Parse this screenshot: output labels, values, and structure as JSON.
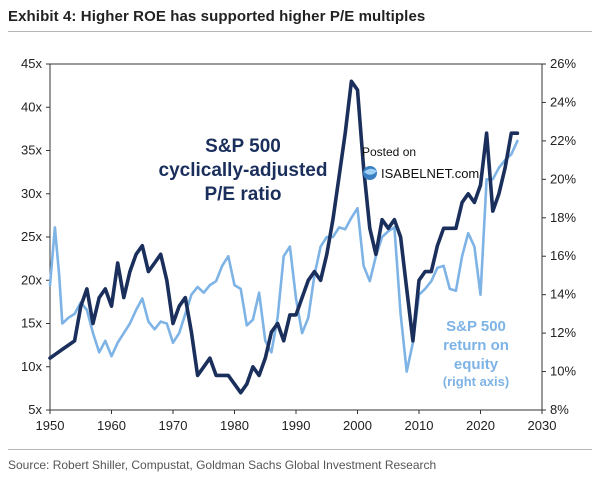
{
  "title": "Exhibit 4: Higher ROE has supported higher P/E multiples",
  "source": "Source: Robert Shiller, Compustat, Goldman Sachs Global Investment Research",
  "watermark": {
    "line1": "Posted on",
    "line2": "ISABELNET.com"
  },
  "colors": {
    "pe": "#1b2f5c",
    "roe": "#7eb3e6"
  },
  "chart_data": {
    "type": "line",
    "x_axis": {
      "range": [
        1950,
        2030
      ],
      "ticks": [
        "1950",
        "1960",
        "1970",
        "1980",
        "1990",
        "2000",
        "2010",
        "2020",
        "2030"
      ]
    },
    "y_left": {
      "range": [
        5,
        45
      ],
      "ticks": [
        "5x",
        "10x",
        "15x",
        "20x",
        "25x",
        "30x",
        "35x",
        "40x",
        "45x"
      ]
    },
    "y_right": {
      "range": [
        8,
        26
      ],
      "ticks": [
        "8%",
        "10%",
        "12%",
        "14%",
        "16%",
        "18%",
        "20%",
        "22%",
        "24%",
        "26%"
      ]
    },
    "annotations": {
      "pe": [
        "S&P 500",
        "cyclically-adjusted",
        "P/E ratio"
      ],
      "roe": [
        "S&P 500",
        "return on",
        "equity",
        "(right axis)"
      ]
    },
    "series": [
      {
        "name": "S&P 500 cyclically-adjusted P/E ratio",
        "axis": "left",
        "x": [
          1950,
          1951,
          1952,
          1953,
          1954,
          1955,
          1956,
          1957,
          1958,
          1959,
          1960,
          1961,
          1962,
          1963,
          1964,
          1965,
          1966,
          1967,
          1968,
          1969,
          1970,
          1971,
          1972,
          1973,
          1974,
          1975,
          1976,
          1977,
          1978,
          1979,
          1980,
          1981,
          1982,
          1983,
          1984,
          1985,
          1986,
          1987,
          1988,
          1989,
          1990,
          1991,
          1992,
          1993,
          1994,
          1995,
          1996,
          1997,
          1998,
          1999,
          2000,
          2001,
          2002,
          2003,
          2004,
          2005,
          2006,
          2007,
          2008,
          2009,
          2010,
          2011,
          2012,
          2013,
          2014,
          2015,
          2016,
          2017,
          2018,
          2019,
          2020,
          2021,
          2022,
          2023,
          2024,
          2025,
          2026
        ],
        "y": [
          11,
          11.5,
          12,
          12.5,
          13,
          17,
          19,
          15,
          18,
          19,
          17,
          22,
          18,
          21,
          23,
          24,
          21,
          22,
          23,
          20,
          15,
          17,
          18,
          14,
          9,
          10,
          11,
          9,
          9,
          9,
          8,
          7,
          8,
          10,
          9,
          11,
          14,
          15,
          13,
          16,
          16,
          18,
          20,
          21,
          20,
          23,
          27,
          32,
          37,
          43,
          42,
          33,
          26,
          23,
          27,
          26,
          27,
          25,
          19,
          13,
          20,
          21,
          21,
          24,
          26,
          26,
          26,
          29,
          30,
          29,
          31,
          37,
          28,
          30,
          33,
          37,
          37
        ]
      },
      {
        "name": "S&P 500 return on equity",
        "axis": "right",
        "x": [
          1950,
          1950.8,
          1951.5,
          1952,
          1953,
          1954,
          1955,
          1956,
          1957,
          1958,
          1959,
          1960,
          1961,
          1962,
          1963,
          1964,
          1965,
          1966,
          1967,
          1968,
          1969,
          1970,
          1971,
          1972,
          1973,
          1974,
          1975,
          1976,
          1977,
          1978,
          1979,
          1980,
          1981,
          1982,
          1983,
          1984,
          1985,
          1986,
          1987,
          1988,
          1989,
          1990,
          1991,
          1992,
          1993,
          1994,
          1995,
          1996,
          1997,
          1998,
          1999,
          2000,
          2001,
          2002,
          2003,
          2004,
          2005,
          2006,
          2007,
          2008,
          2009,
          2010,
          2011,
          2012,
          2013,
          2014,
          2015,
          2016,
          2017,
          2018,
          2019,
          2020,
          2021,
          2022,
          2023,
          2024,
          2025,
          2026
        ],
        "y": [
          14.5,
          17.5,
          15,
          12.5,
          12.8,
          13,
          13.6,
          13.2,
          12,
          11,
          11.6,
          10.8,
          11.5,
          12,
          12.5,
          13.2,
          13.8,
          12.6,
          12.2,
          12.6,
          12.5,
          11.5,
          12,
          13,
          14,
          14.4,
          14.1,
          14.5,
          14.7,
          15.5,
          16,
          14.5,
          14.3,
          12.4,
          12.7,
          14.1,
          11.6,
          11,
          12.8,
          16,
          16.5,
          13.8,
          12,
          12.8,
          15,
          16.5,
          17,
          17,
          17.5,
          17.4,
          18,
          18.5,
          15.5,
          14.7,
          16,
          17,
          17.3,
          17.5,
          13,
          10,
          11.5,
          14,
          14.3,
          14.7,
          15.4,
          15.5,
          14.3,
          14.2,
          16,
          17.2,
          16.5,
          14,
          20,
          20,
          20.6,
          21,
          21.3,
          22
        ]
      }
    ]
  }
}
